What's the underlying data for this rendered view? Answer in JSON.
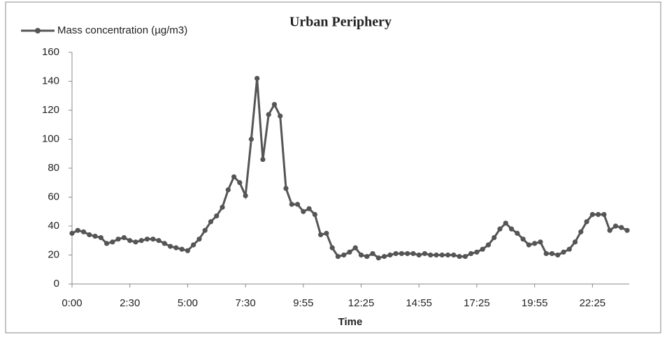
{
  "chart_data": {
    "type": "line",
    "title": "Urban Periphery",
    "x_label": "Time",
    "categories": [
      "0:00",
      null,
      null,
      null,
      null,
      null,
      null,
      null,
      null,
      null,
      "2:30",
      null,
      null,
      null,
      null,
      null,
      null,
      null,
      null,
      null,
      "5:00",
      null,
      null,
      null,
      null,
      null,
      null,
      null,
      null,
      null,
      "7:30",
      null,
      null,
      null,
      null,
      null,
      null,
      null,
      null,
      null,
      "9:55",
      null,
      null,
      null,
      null,
      null,
      null,
      null,
      null,
      null,
      "12:25",
      null,
      null,
      null,
      null,
      null,
      null,
      null,
      null,
      null,
      "14:55",
      null,
      null,
      null,
      null,
      null,
      null,
      null,
      null,
      null,
      "17:25",
      null,
      null,
      null,
      null,
      null,
      null,
      null,
      null,
      null,
      "19:55",
      null,
      null,
      null,
      null,
      null,
      null,
      null,
      null,
      null,
      "22:25",
      null,
      null,
      null,
      null,
      null,
      null
    ],
    "series": [
      {
        "name": "Mass concentration (µg/m3)",
        "color": "#555555",
        "values": [
          35,
          37,
          36,
          34,
          33,
          32,
          28,
          29,
          31,
          32,
          30,
          29,
          30,
          31,
          31,
          30,
          28,
          26,
          25,
          24,
          23,
          27,
          31,
          37,
          43,
          47,
          53,
          65,
          74,
          70,
          61,
          100,
          142,
          86,
          117,
          124,
          116,
          66,
          55,
          55,
          50,
          52,
          48,
          34,
          35,
          25,
          19,
          20,
          22,
          25,
          20,
          19,
          21,
          18,
          19,
          20,
          21,
          21,
          21,
          21,
          20,
          21,
          20,
          20,
          20,
          20,
          20,
          19,
          19,
          21,
          22,
          24,
          27,
          32,
          38,
          42,
          38,
          35,
          31,
          27,
          28,
          29,
          21,
          21,
          20,
          22,
          24,
          29,
          36,
          43,
          48,
          48,
          48,
          37,
          40,
          39,
          37
        ]
      }
    ],
    "ylim": [
      0,
      160
    ],
    "yticks": [
      0,
      20,
      40,
      60,
      80,
      100,
      120,
      140,
      160
    ],
    "grid": false,
    "legend": "top-left"
  }
}
